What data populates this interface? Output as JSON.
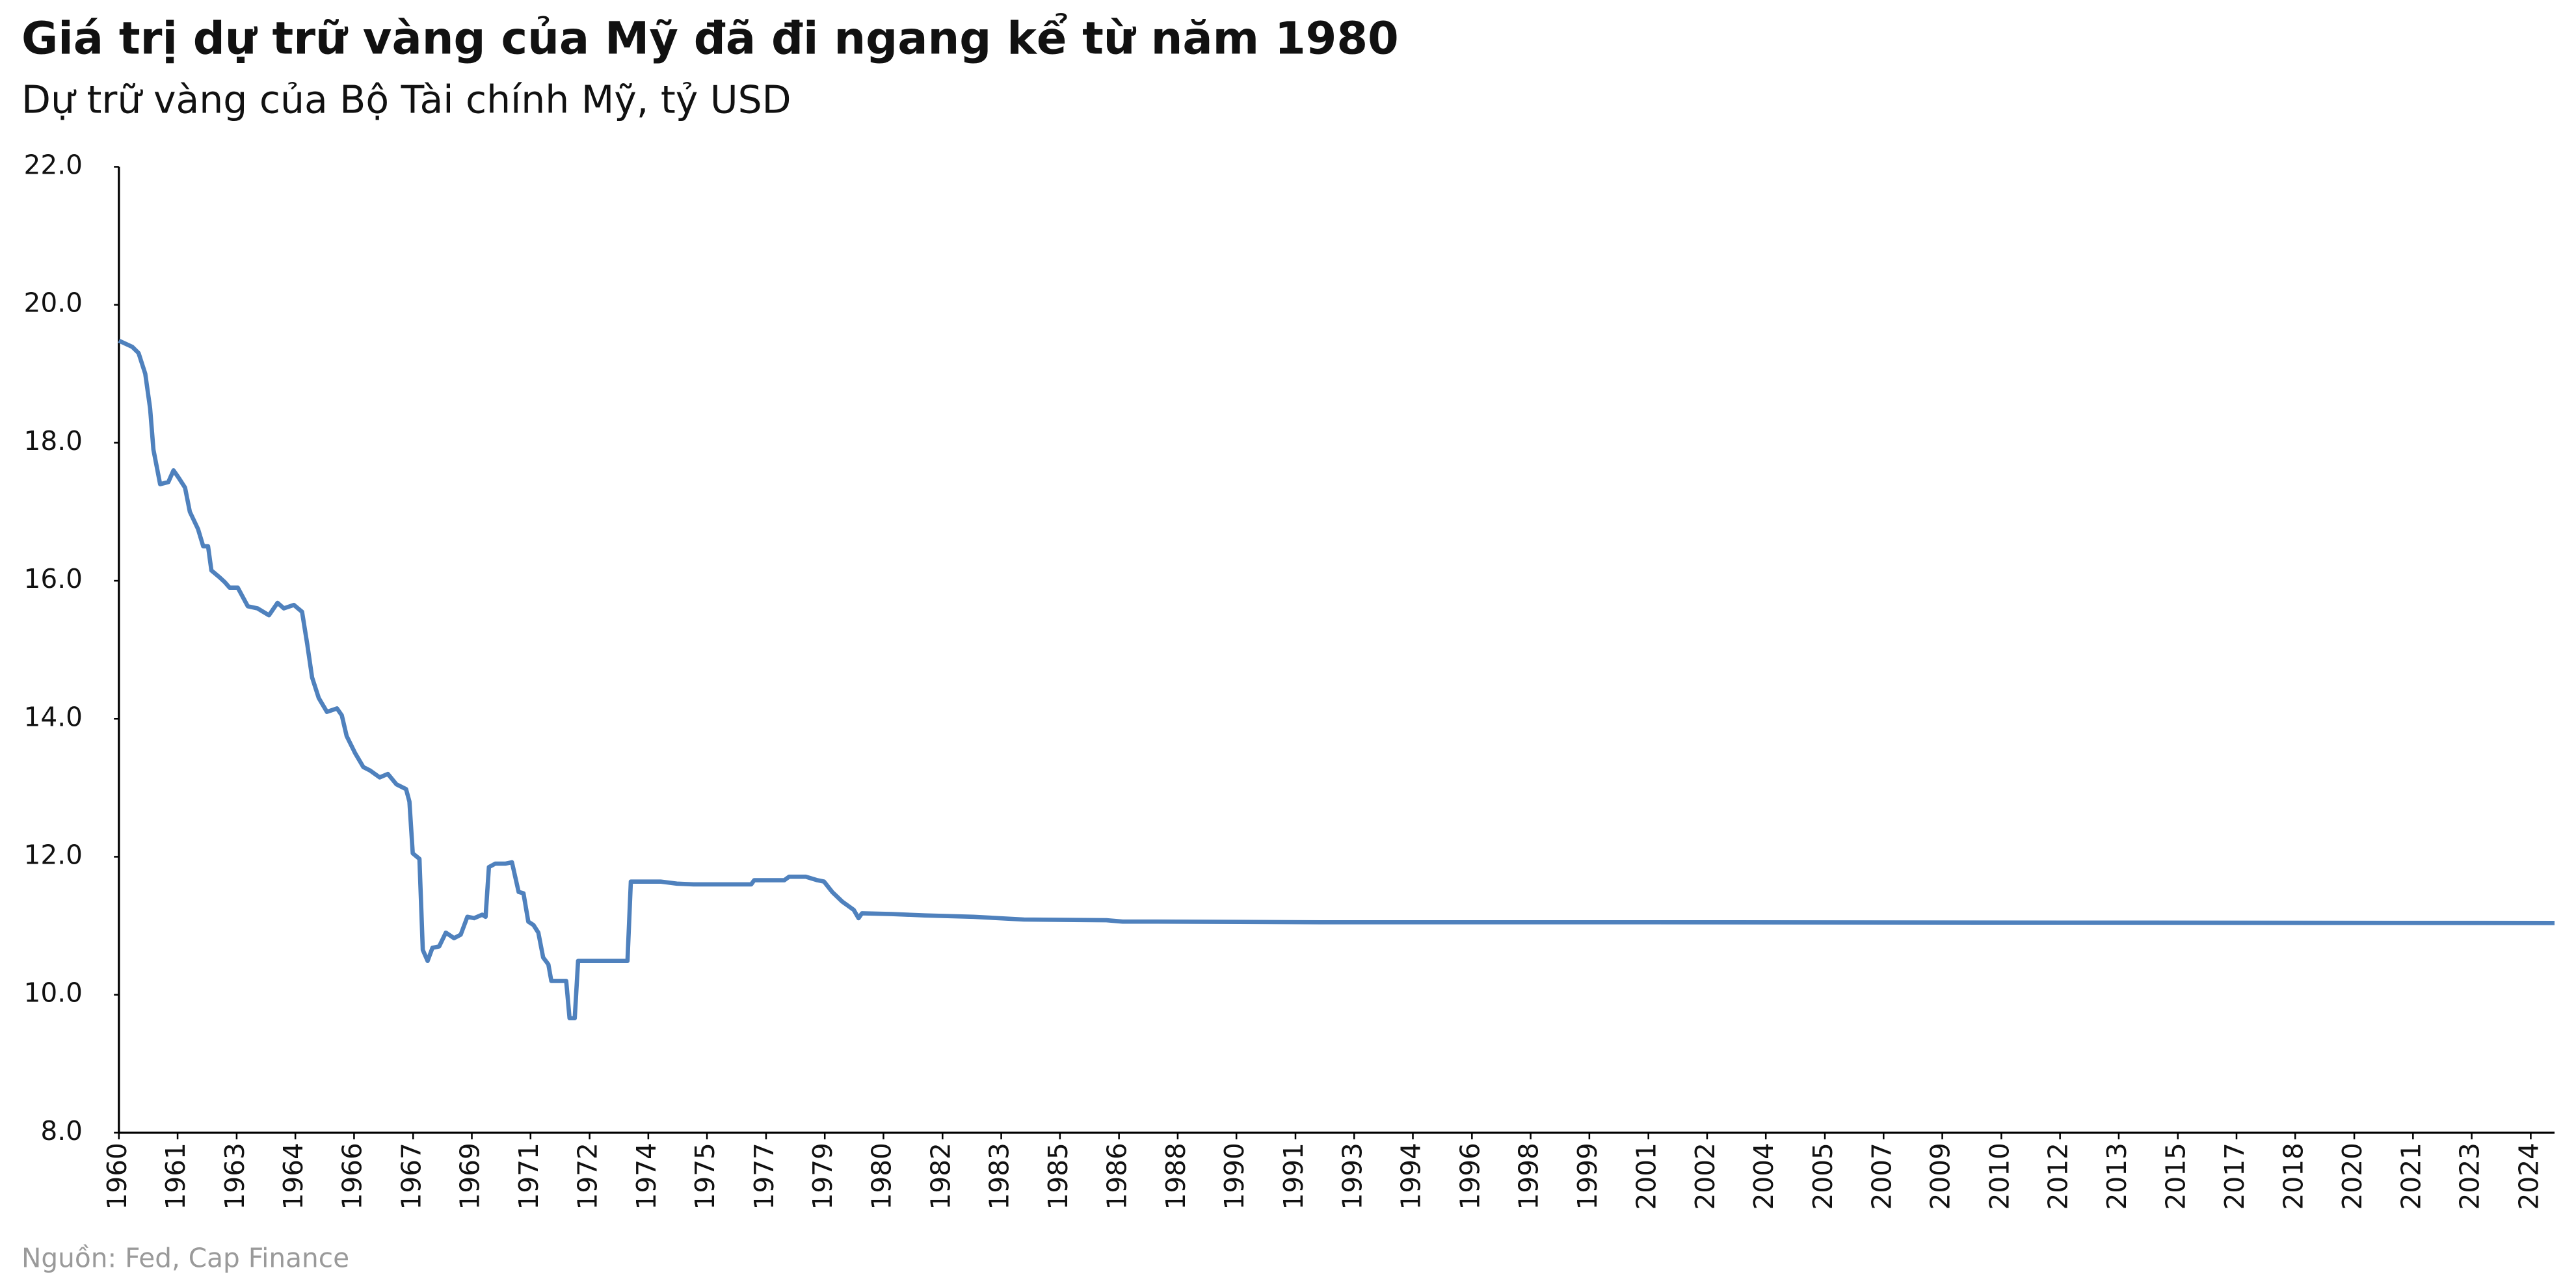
{
  "chart_data": {
    "type": "line",
    "title": "Giá trị dự trữ vàng của Mỹ đã đi ngang kể từ năm 1980",
    "subtitle": "Dự trữ vàng của Bộ Tài chính Mỹ, tỷ USD",
    "source": "Nguồn: Fed, Cap Finance",
    "color": "#4f81bd",
    "x": [
      1960.0,
      1960.36,
      1960.53,
      1960.71,
      1960.84,
      1960.93,
      1961.02,
      1961.11,
      1961.33,
      1961.47,
      1961.6,
      1961.78,
      1961.91,
      1962.13,
      1962.27,
      1962.4,
      1962.49,
      1962.71,
      1962.85,
      1962.98,
      1963.2,
      1963.47,
      1963.73,
      1964.04,
      1964.27,
      1964.44,
      1964.71,
      1964.93,
      1965.07,
      1965.2,
      1965.38,
      1965.6,
      1965.87,
      1966.0,
      1966.13,
      1966.36,
      1966.58,
      1966.76,
      1967.02,
      1967.24,
      1967.47,
      1967.73,
      1967.82,
      1967.91,
      1968.09,
      1968.18,
      1968.31,
      1968.44,
      1968.62,
      1968.8,
      1969.02,
      1969.2,
      1969.38,
      1969.56,
      1969.78,
      1969.87,
      1969.96,
      1970.13,
      1970.4,
      1970.58,
      1970.76,
      1970.89,
      1971.02,
      1971.16,
      1971.29,
      1971.42,
      1971.56,
      1971.64,
      1972.04,
      1972.13,
      1972.27,
      1972.36,
      1973.69,
      1973.78,
      1974.58,
      1975.02,
      1975.47,
      1977.02,
      1977.1,
      1977.91,
      1978.04,
      1978.49,
      1978.8,
      1978.98,
      1979.2,
      1979.47,
      1979.78,
      1979.91,
      1980.0,
      1980.8,
      1981.69,
      1983.0,
      1984.36,
      1986.58,
      1987.02,
      1987.91,
      1992.36,
      2001.2,
      2025.56
    ],
    "values": [
      19.48,
      19.39,
      19.3,
      19.0,
      18.5,
      17.9,
      17.65,
      17.4,
      17.43,
      17.6,
      17.5,
      17.35,
      17.0,
      16.75,
      16.5,
      16.5,
      16.15,
      16.05,
      15.98,
      15.9,
      15.9,
      15.63,
      15.6,
      15.5,
      15.68,
      15.6,
      15.65,
      15.55,
      15.08,
      14.6,
      14.3,
      14.1,
      14.15,
      14.05,
      13.75,
      13.5,
      13.3,
      13.25,
      13.15,
      13.2,
      13.05,
      12.98,
      12.8,
      12.05,
      11.97,
      10.65,
      10.49,
      10.68,
      10.7,
      10.9,
      10.82,
      10.87,
      11.13,
      11.11,
      11.16,
      11.13,
      11.85,
      11.9,
      11.9,
      11.92,
      11.49,
      11.47,
      11.06,
      11.01,
      10.9,
      10.54,
      10.44,
      10.2,
      10.2,
      9.66,
      9.66,
      10.49,
      10.49,
      11.64,
      11.64,
      11.61,
      11.6,
      11.6,
      11.66,
      11.66,
      11.71,
      11.71,
      11.66,
      11.64,
      11.49,
      11.35,
      11.23,
      11.11,
      11.18,
      11.17,
      11.15,
      11.13,
      11.09,
      11.08,
      11.06,
      11.06,
      11.05,
      11.05,
      11.04
    ],
    "xlim": [
      1960,
      2025.56
    ],
    "ylim": [
      8,
      22
    ],
    "yticks": [
      {
        "value": 8,
        "label": "8.0"
      },
      {
        "value": 10,
        "label": "10.0"
      },
      {
        "value": 12,
        "label": "12.0"
      },
      {
        "value": 14,
        "label": "14.0"
      },
      {
        "value": 16,
        "label": "16.0"
      },
      {
        "value": 18,
        "label": "18.0"
      },
      {
        "value": 20,
        "label": "20.0"
      },
      {
        "value": 22,
        "label": "22.0"
      }
    ],
    "xticks": [
      {
        "value": 1960.0,
        "label": "1960"
      },
      {
        "value": 1961.58,
        "label": "1961"
      },
      {
        "value": 1963.17,
        "label": "1963"
      },
      {
        "value": 1964.75,
        "label": "1964"
      },
      {
        "value": 1966.33,
        "label": "1966"
      },
      {
        "value": 1967.92,
        "label": "1967"
      },
      {
        "value": 1969.5,
        "label": "1969"
      },
      {
        "value": 1971.08,
        "label": "1971"
      },
      {
        "value": 1972.67,
        "label": "1972"
      },
      {
        "value": 1974.25,
        "label": "1974"
      },
      {
        "value": 1975.83,
        "label": "1975"
      },
      {
        "value": 1977.42,
        "label": "1977"
      },
      {
        "value": 1979.0,
        "label": "1979"
      },
      {
        "value": 1980.58,
        "label": "1980"
      },
      {
        "value": 1982.17,
        "label": "1982"
      },
      {
        "value": 1983.75,
        "label": "1983"
      },
      {
        "value": 1985.33,
        "label": "1985"
      },
      {
        "value": 1986.92,
        "label": "1986"
      },
      {
        "value": 1988.5,
        "label": "1988"
      },
      {
        "value": 1990.08,
        "label": "1990"
      },
      {
        "value": 1991.67,
        "label": "1991"
      },
      {
        "value": 1993.25,
        "label": "1993"
      },
      {
        "value": 1994.83,
        "label": "1994"
      },
      {
        "value": 1996.42,
        "label": "1996"
      },
      {
        "value": 1998.0,
        "label": "1998"
      },
      {
        "value": 1999.58,
        "label": "1999"
      },
      {
        "value": 2001.17,
        "label": "2001"
      },
      {
        "value": 2002.75,
        "label": "2002"
      },
      {
        "value": 2004.33,
        "label": "2004"
      },
      {
        "value": 2005.92,
        "label": "2005"
      },
      {
        "value": 2007.5,
        "label": "2007"
      },
      {
        "value": 2009.08,
        "label": "2009"
      },
      {
        "value": 2010.67,
        "label": "2010"
      },
      {
        "value": 2012.25,
        "label": "2012"
      },
      {
        "value": 2013.83,
        "label": "2013"
      },
      {
        "value": 2015.42,
        "label": "2015"
      },
      {
        "value": 2017.0,
        "label": "2017"
      },
      {
        "value": 2018.58,
        "label": "2018"
      },
      {
        "value": 2020.17,
        "label": "2020"
      },
      {
        "value": 2021.75,
        "label": "2021"
      },
      {
        "value": 2023.33,
        "label": "2023"
      },
      {
        "value": 2024.92,
        "label": "2024"
      }
    ]
  }
}
